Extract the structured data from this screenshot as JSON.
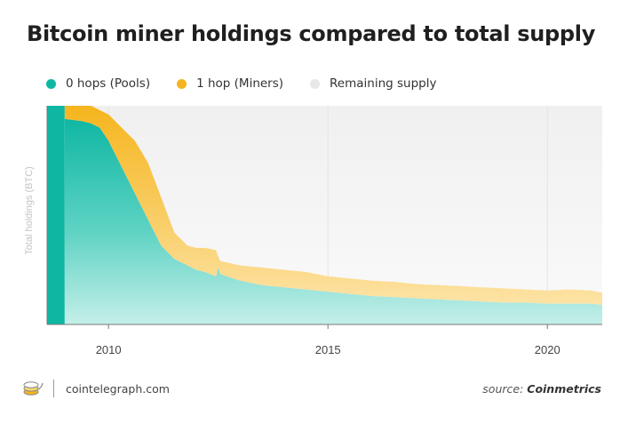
{
  "header": {
    "title": "Bitcoin miner holdings compared to total supply"
  },
  "legend": [
    {
      "label": "0 hops (Pools)",
      "color": "#0fb7a3"
    },
    {
      "label": "1 hop (Miners)",
      "color": "#f6b51e"
    },
    {
      "label": "Remaining supply",
      "color": "#eeeeee"
    }
  ],
  "footer": {
    "site": "cointelegraph.com",
    "source_prefix": "source: ",
    "source_name": "Coinmetrics"
  },
  "chart_data": {
    "type": "area",
    "stacked": true,
    "normalized": true,
    "title": "Bitcoin miner holdings compared to total supply",
    "xlabel": "",
    "ylabel": "Total holdings (BTC)",
    "xlim": [
      2008.6,
      2021.25
    ],
    "ylim": [
      0,
      1
    ],
    "x_ticks": [
      2010,
      2015,
      2020
    ],
    "legend_position": "top",
    "x": [
      2009.0,
      2009.4,
      2009.6,
      2009.8,
      2010.0,
      2010.3,
      2010.6,
      2010.9,
      2011.2,
      2011.5,
      2011.8,
      2012.0,
      2012.2,
      2012.45,
      2012.5,
      2012.55,
      2013.0,
      2013.5,
      2014.0,
      2014.5,
      2015.0,
      2015.5,
      2016.0,
      2016.5,
      2017.0,
      2017.5,
      2018.0,
      2018.5,
      2019.0,
      2019.5,
      2020.0,
      2020.5,
      2021.0,
      2021.25
    ],
    "series": [
      {
        "name": "0 hops (Pools)",
        "color": "#0fb7a3",
        "values": [
          0.94,
          0.93,
          0.92,
          0.9,
          0.84,
          0.72,
          0.6,
          0.48,
          0.36,
          0.3,
          0.27,
          0.25,
          0.24,
          0.22,
          0.26,
          0.23,
          0.2,
          0.18,
          0.17,
          0.16,
          0.15,
          0.14,
          0.13,
          0.125,
          0.12,
          0.115,
          0.11,
          0.105,
          0.1,
          0.1,
          0.095,
          0.095,
          0.095,
          0.09
        ]
      },
      {
        "name": "1 hop (Miners)",
        "color": "#f6b51e",
        "values": [
          0.06,
          0.07,
          0.08,
          0.08,
          0.12,
          0.18,
          0.24,
          0.26,
          0.22,
          0.12,
          0.09,
          0.1,
          0.11,
          0.12,
          0.05,
          0.06,
          0.07,
          0.08,
          0.08,
          0.08,
          0.07,
          0.07,
          0.07,
          0.07,
          0.065,
          0.065,
          0.065,
          0.065,
          0.065,
          0.06,
          0.06,
          0.065,
          0.06,
          0.055
        ]
      },
      {
        "name": "Remaining supply",
        "color": "#eeeeee",
        "values": [
          0.0,
          0.0,
          0.0,
          0.02,
          0.04,
          0.1,
          0.16,
          0.26,
          0.42,
          0.58,
          0.64,
          0.65,
          0.65,
          0.66,
          0.69,
          0.71,
          0.73,
          0.74,
          0.75,
          0.76,
          0.78,
          0.79,
          0.8,
          0.805,
          0.815,
          0.82,
          0.825,
          0.83,
          0.835,
          0.84,
          0.845,
          0.84,
          0.845,
          0.855
        ]
      }
    ]
  }
}
